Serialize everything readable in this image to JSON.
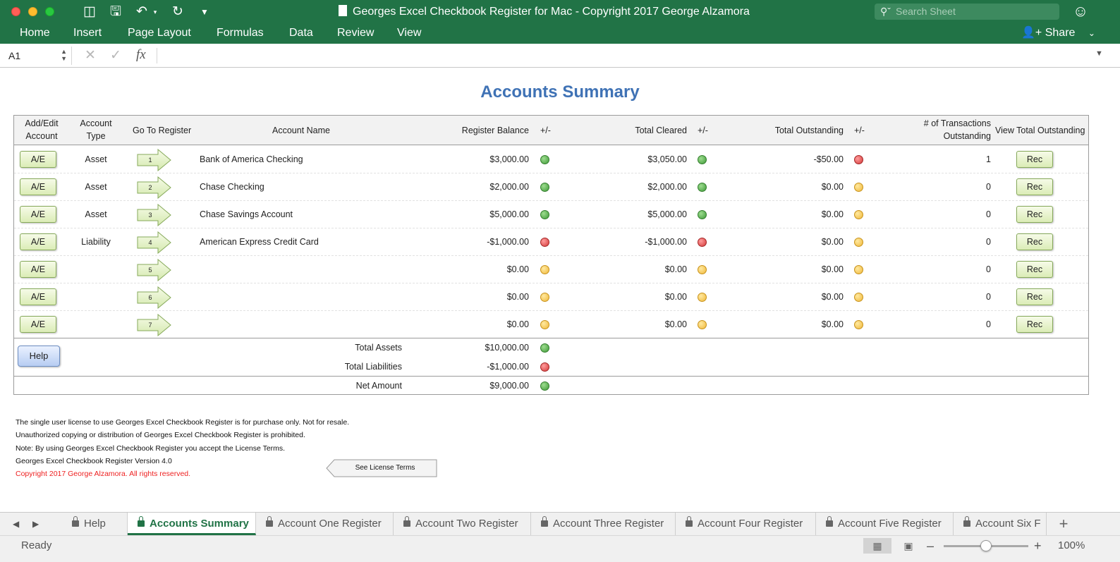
{
  "window": {
    "title": "Georges Excel Checkbook Register for Mac - Copyright 2017 George Alzamora",
    "search_placeholder": "Search Sheet"
  },
  "ribbon": {
    "tabs": [
      "Home",
      "Insert",
      "Page Layout",
      "Formulas",
      "Data",
      "Review",
      "View"
    ],
    "share_label": "Share"
  },
  "formula_bar": {
    "cell_ref": "A1",
    "fx_label": "fx",
    "content": ""
  },
  "sheet": {
    "title": "Accounts Summary",
    "headers": {
      "add_edit": [
        "Add/Edit",
        "Account"
      ],
      "account_type": [
        "Account",
        "Type"
      ],
      "go_to_register": "Go To Register",
      "account_name": "Account Name",
      "register_balance": "Register Balance",
      "pm1": "+/-",
      "total_cleared": "Total Cleared",
      "pm2": "+/-",
      "total_outstanding": "Total Outstanding",
      "pm3": "+/-",
      "num_transactions": [
        "# of Transactions",
        "Outstanding"
      ],
      "view_total": "View Total Outstanding"
    },
    "ae_label": "A/E",
    "rec_label": "Rec",
    "rows": [
      {
        "type": "Asset",
        "go": "1",
        "name": "Bank of America Checking",
        "balance": "$3,000.00",
        "balance_status": "green",
        "cleared": "$3,050.00",
        "cleared_status": "green",
        "outstanding": "-$50.00",
        "outstanding_status": "red",
        "count": "1"
      },
      {
        "type": "Asset",
        "go": "2",
        "name": "Chase Checking",
        "balance": "$2,000.00",
        "balance_status": "green",
        "cleared": "$2,000.00",
        "cleared_status": "green",
        "outstanding": "$0.00",
        "outstanding_status": "yellow",
        "count": "0"
      },
      {
        "type": "Asset",
        "go": "3",
        "name": "Chase Savings Account",
        "balance": "$5,000.00",
        "balance_status": "green",
        "cleared": "$5,000.00",
        "cleared_status": "green",
        "outstanding": "$0.00",
        "outstanding_status": "yellow",
        "count": "0"
      },
      {
        "type": "Liability",
        "go": "4",
        "name": "American Express Credit Card",
        "balance": "-$1,000.00",
        "balance_status": "red",
        "cleared": "-$1,000.00",
        "cleared_status": "red",
        "outstanding": "$0.00",
        "outstanding_status": "yellow",
        "count": "0"
      },
      {
        "type": "",
        "go": "5",
        "name": "",
        "balance": "$0.00",
        "balance_status": "yellow",
        "cleared": "$0.00",
        "cleared_status": "yellow",
        "outstanding": "$0.00",
        "outstanding_status": "yellow",
        "count": "0"
      },
      {
        "type": "",
        "go": "6",
        "name": "",
        "balance": "$0.00",
        "balance_status": "yellow",
        "cleared": "$0.00",
        "cleared_status": "yellow",
        "outstanding": "$0.00",
        "outstanding_status": "yellow",
        "count": "0"
      },
      {
        "type": "",
        "go": "7",
        "name": "",
        "balance": "$0.00",
        "balance_status": "yellow",
        "cleared": "$0.00",
        "cleared_status": "yellow",
        "outstanding": "$0.00",
        "outstanding_status": "yellow",
        "count": "0"
      }
    ],
    "help_label": "Help",
    "totals": [
      {
        "label": "Total Assets",
        "amount": "$10,000.00",
        "status": "green"
      },
      {
        "label": "Total Liabilities",
        "amount": "-$1,000.00",
        "status": "red"
      },
      {
        "label": "Net Amount",
        "amount": "$9,000.00",
        "status": "green"
      }
    ],
    "notes": [
      "The single user license to use Georges Excel Checkbook Register is for purchase only.  Not for resale.",
      "Unauthorized copying or distribution of Georges Excel Checkbook Register is prohibited.",
      "Note: By using Georges Excel Checkbook Register you accept the License Terms.",
      "Georges Excel Checkbook Register Version 4.0",
      "Copyright 2017  George Alzamora.  All rights reserved."
    ],
    "license_button": "See License Terms"
  },
  "sheet_tabs": {
    "tabs": [
      "Help",
      "Accounts Summary",
      "Account One Register",
      "Account Two Register",
      "Account Three Register",
      "Account Four Register",
      "Account Five Register",
      "Account Six F"
    ],
    "active": "Accounts Summary"
  },
  "status_bar": {
    "status": "Ready",
    "zoom": "100%",
    "zoom_fraction": 0.5
  },
  "colors": {
    "excel_green": "#217346",
    "title_blue": "#3f72b5",
    "status_green": "#3f9a38",
    "status_red": "#d33a3a",
    "status_yellow": "#f0b83a",
    "copyright_red": "#e22222"
  }
}
